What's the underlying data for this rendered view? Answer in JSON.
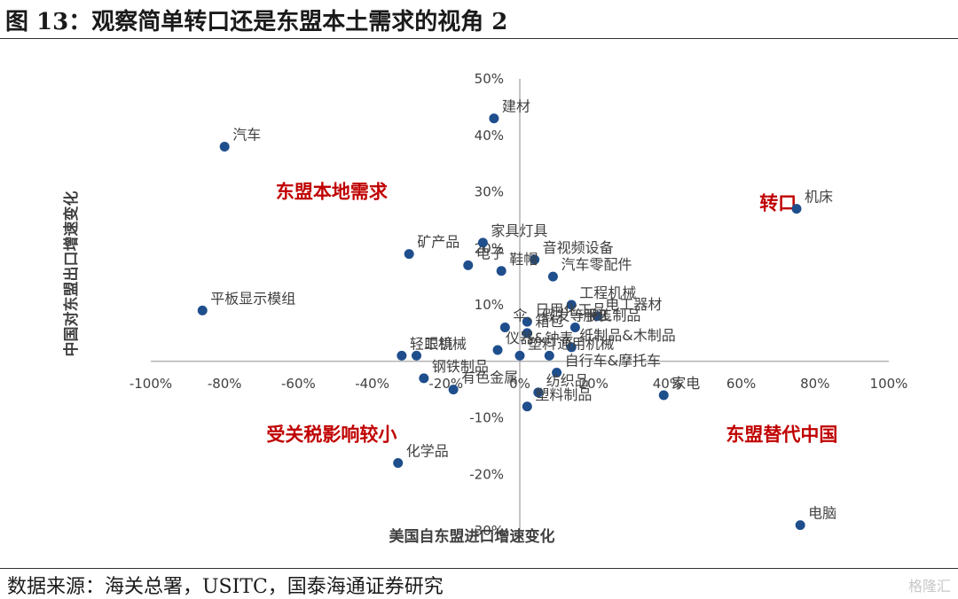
{
  "figure": {
    "title": "图 13：观察简单转口还是东盟本土需求的视角 2",
    "source": "数据来源：海关总署，USITC，国泰海通证券研究",
    "watermark": "格隆汇"
  },
  "colors": {
    "point": "#1f4e8c",
    "quadrant_label": "#c00000",
    "axis": "#a6a6a6",
    "text": "#404040"
  },
  "chart_data": {
    "type": "scatter",
    "xlabel": "美国自东盟进口增速变化",
    "ylabel": "中国对东盟出口增速变化",
    "xlim": [
      -1.0,
      1.0
    ],
    "ylim": [
      -0.3,
      0.5
    ],
    "xticks": [
      -1.0,
      -0.8,
      -0.6,
      -0.4,
      -0.2,
      0,
      0.2,
      0.4,
      0.6,
      0.8,
      1.0
    ],
    "xtick_labels": [
      "-100%",
      "-80%",
      "-60%",
      "-40%",
      "-20%",
      "0%",
      "20%",
      "40%",
      "60%",
      "80%",
      "100%"
    ],
    "yticks": [
      -0.3,
      -0.2,
      -0.1,
      0.1,
      0.2,
      0.3,
      0.4,
      0.5
    ],
    "ytick_labels": [
      "-30%",
      "-20%",
      "-10%",
      "10%",
      "20%",
      "30%",
      "40%",
      "50%"
    ],
    "grid": false,
    "points": [
      {
        "label": "建材",
        "x": -0.07,
        "y": 0.43
      },
      {
        "label": "汽车",
        "x": -0.8,
        "y": 0.38
      },
      {
        "label": "机床",
        "x": 0.75,
        "y": 0.27
      },
      {
        "label": "矿产品",
        "x": -0.3,
        "y": 0.19
      },
      {
        "label": "家具灯具",
        "x": -0.1,
        "y": 0.21
      },
      {
        "label": "电子",
        "x": -0.14,
        "y": 0.17
      },
      {
        "label": "音视频设备",
        "x": 0.04,
        "y": 0.18
      },
      {
        "label": "鞋帽",
        "x": -0.05,
        "y": 0.16
      },
      {
        "label": "电工器材",
        "x": 0.21,
        "y": 0.08
      },
      {
        "label": "汽车零配件",
        "x": 0.09,
        "y": 0.15
      },
      {
        "label": "工程机械",
        "x": 0.14,
        "y": 0.1
      },
      {
        "label": "平板显示模组",
        "x": -0.86,
        "y": 0.09
      },
      {
        "label": "日用化工品",
        "x": 0.02,
        "y": 0.07
      },
      {
        "label": "伞、假发等手工制品",
        "x": -0.04,
        "y": 0.06
      },
      {
        "label": "服装",
        "x": 0.15,
        "y": 0.06
      },
      {
        "label": "箱包",
        "x": 0.02,
        "y": 0.05
      },
      {
        "label": "轻工机械",
        "x": -0.32,
        "y": 0.01
      },
      {
        "label": "眼镜",
        "x": -0.28,
        "y": 0.01
      },
      {
        "label": "仪器&钟表",
        "x": -0.06,
        "y": 0.02
      },
      {
        "label": "纸制品&木制品",
        "x": 0.14,
        "y": 0.025
      },
      {
        "label": "通用机械",
        "x": 0.08,
        "y": 0.01
      },
      {
        "label": "塑料",
        "x": 0.0,
        "y": 0.01
      },
      {
        "label": "钢铁制品",
        "x": -0.26,
        "y": -0.03
      },
      {
        "label": "自行车&摩托车",
        "x": 0.1,
        "y": -0.02
      },
      {
        "label": "有色金属",
        "x": -0.18,
        "y": -0.05
      },
      {
        "label": "纺织品",
        "x": 0.05,
        "y": -0.055
      },
      {
        "label": "塑料制品",
        "x": 0.02,
        "y": -0.08
      },
      {
        "label": "家电",
        "x": 0.39,
        "y": -0.06
      },
      {
        "label": "化学品",
        "x": -0.33,
        "y": -0.18
      },
      {
        "label": "电脑",
        "x": 0.76,
        "y": -0.29
      }
    ],
    "quadrant_labels": [
      {
        "text": "东盟本地需求",
        "x": -0.51,
        "y": 0.3
      },
      {
        "text": "转口",
        "x": 0.7,
        "y": 0.28
      },
      {
        "text": "受关税影响较小",
        "x": -0.51,
        "y": -0.13
      },
      {
        "text": "东盟替代中国",
        "x": 0.71,
        "y": -0.13
      }
    ]
  }
}
